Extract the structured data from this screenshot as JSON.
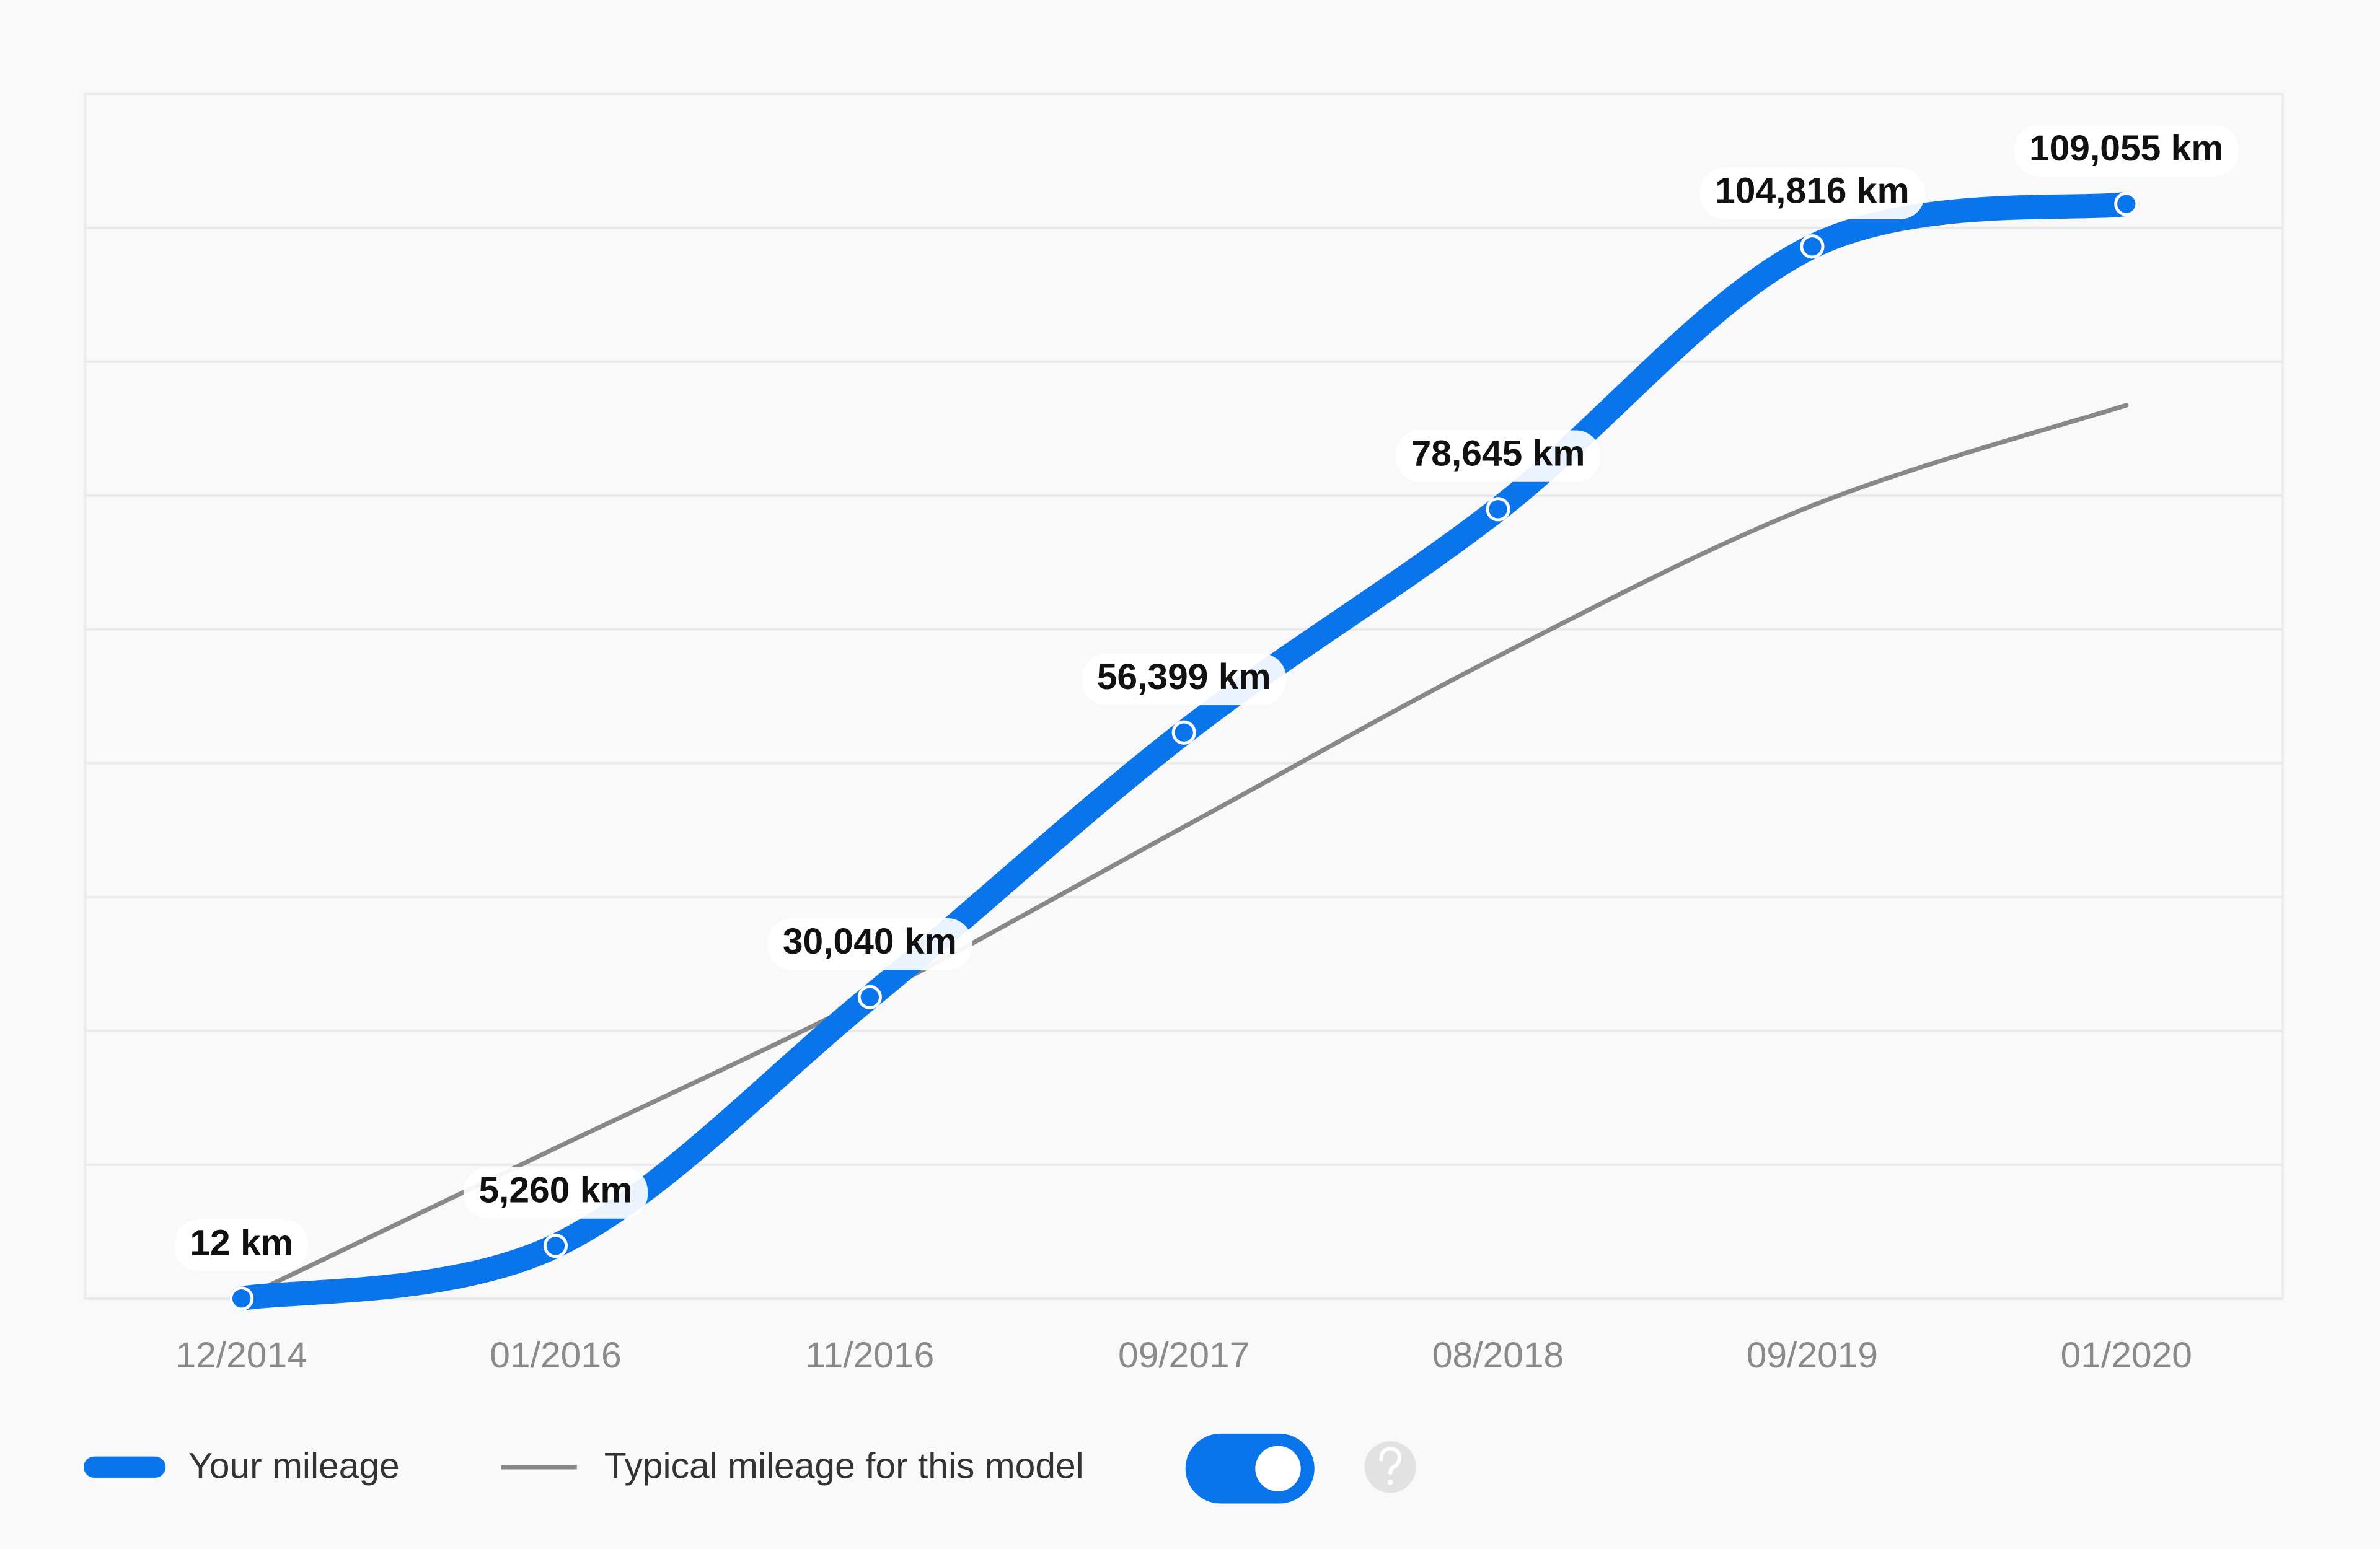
{
  "chart_data": {
    "type": "line",
    "categories": [
      "12/2014",
      "01/2016",
      "11/2016",
      "09/2017",
      "08/2018",
      "09/2019",
      "01/2020"
    ],
    "series": [
      {
        "name": "Your mileage",
        "color": "#0a74ea",
        "values": [
          12,
          5260,
          30040,
          56399,
          78645,
          104816,
          109055
        ],
        "value_labels": [
          "12 km",
          "5,260 km",
          "30,040 km",
          "56,399 km",
          "78,645 km",
          "104,816 km",
          "109,055 km"
        ]
      },
      {
        "name": "Typical mileage for this model",
        "color": "#888888",
        "values": [
          0,
          15000,
          30000,
          47000,
          64000,
          79000,
          89000
        ]
      }
    ],
    "ylim": [
      0,
      120000
    ],
    "yticks": [
      0,
      13333,
      26667,
      40000,
      53333,
      66667,
      80000,
      93333,
      106667,
      120000
    ],
    "grid": true,
    "legend": "bottom"
  }
}
